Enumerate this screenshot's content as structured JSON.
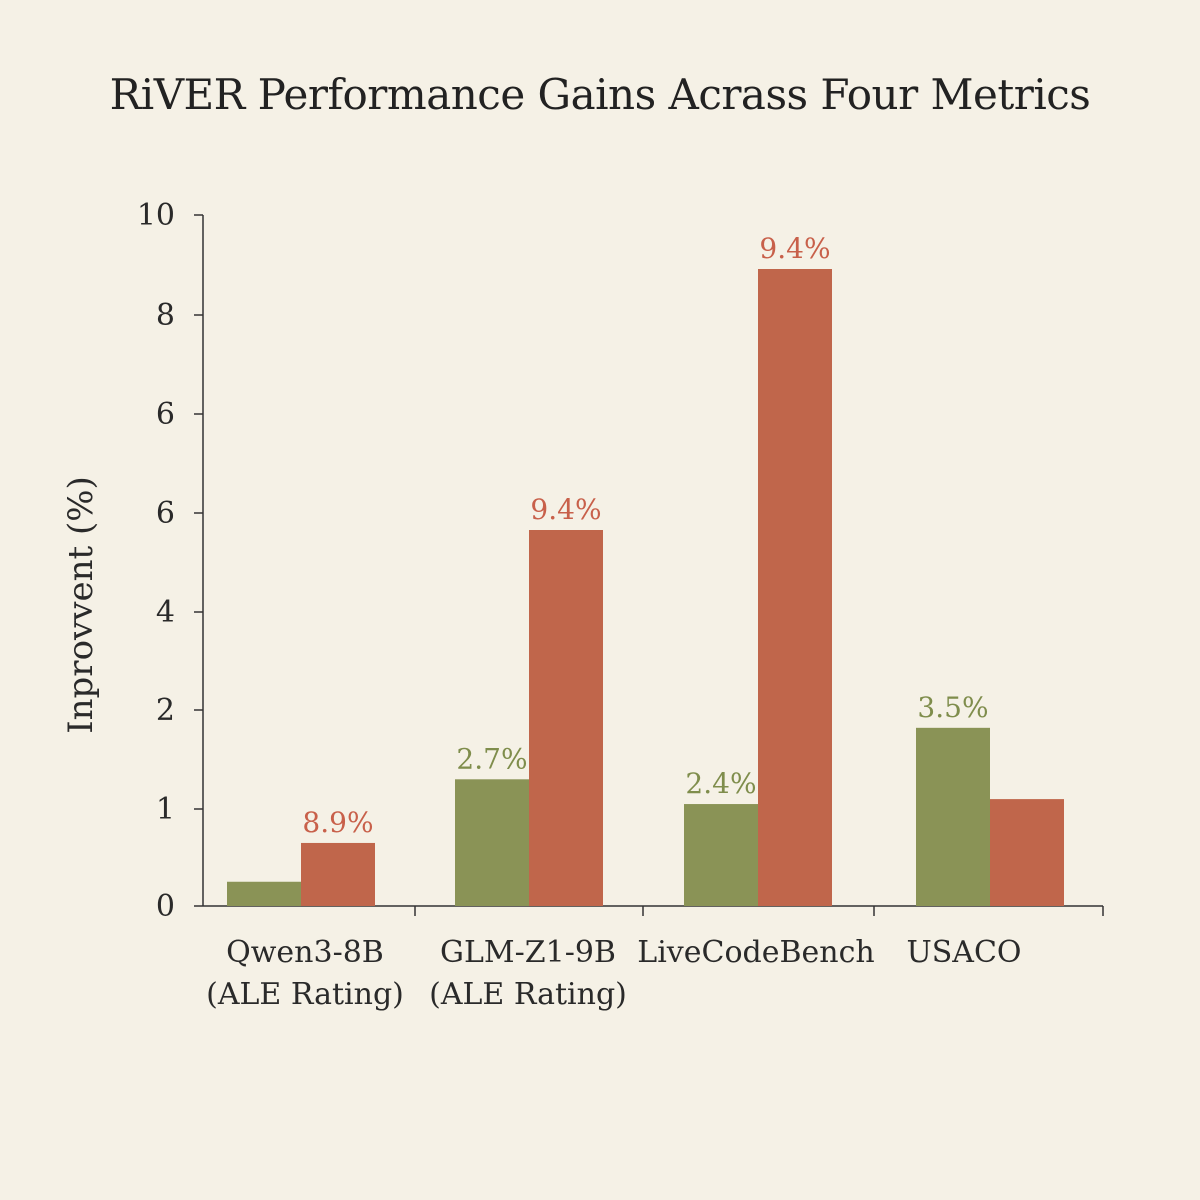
{
  "chart_data": {
    "type": "bar",
    "title": "RiVER Performance Gains Acrass Four Metrics",
    "xlabel": "",
    "ylabel": "Inprovvent (%)",
    "y_ticks": [
      "0",
      "1",
      "2",
      "4",
      "6",
      "6",
      "8",
      "10"
    ],
    "categories": [
      [
        "Qwen3-8B",
        "(ALE Rating)"
      ],
      [
        "GLM-Z1-9B",
        "(ALE Rating)"
      ],
      [
        "LiveCodeBench"
      ],
      [
        "USACO"
      ]
    ],
    "series": [
      {
        "color": "#8a9356",
        "label_color": "#7f8d4c",
        "values": [
          0.25,
          1.3,
          1.05,
          1.82
        ],
        "labels": [
          "",
          "2.7%",
          "2.4%",
          "3.5%"
        ]
      },
      {
        "color": "#c0664b",
        "label_color": "#c8604a",
        "values": [
          0.65,
          5.7,
          8.95,
          1.1
        ],
        "labels": [
          "8.9%",
          "9.4%",
          "9.4%",
          ""
        ]
      }
    ],
    "grid": false,
    "legend": "none"
  }
}
